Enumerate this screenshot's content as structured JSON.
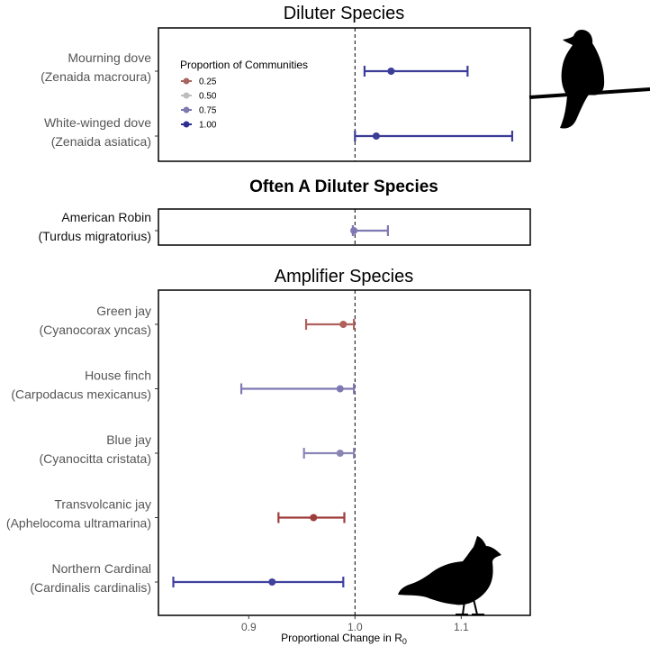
{
  "chart_data": {
    "type": "errorbar",
    "xlabel": "Proportional Change in R",
    "xlabel_subscript": "0",
    "xlim": [
      0.815,
      1.165
    ],
    "xticks": [
      0.9,
      1.0,
      1.1
    ],
    "xtick_labels": [
      "0.9",
      "1.0",
      "1.1"
    ],
    "reference_line": 1.0,
    "legend": {
      "title": "Proportion of Communities",
      "position": "top-left of first panel",
      "entries": [
        {
          "label": "0.25",
          "color": "#a8655f"
        },
        {
          "label": "0.50",
          "color": "#bdbdbd"
        },
        {
          "label": "0.75",
          "color": "#7f79b3"
        },
        {
          "label": "1.00",
          "color": "#2f2f93"
        }
      ]
    },
    "panels": [
      {
        "title": "Diluter Species",
        "title_bold": false,
        "species": [
          {
            "common": "Mourning dove",
            "latin": "(Zenaida macroura)",
            "estimate": 1.034,
            "lower": 1.009,
            "upper": 1.106,
            "proportion": "1.00",
            "color": "#3c3c99"
          },
          {
            "common": "White-winged dove",
            "latin": "(Zenaida asiatica)",
            "estimate": 1.02,
            "lower": 1.0,
            "upper": 1.148,
            "proportion": "1.00",
            "color": "#3c3c99"
          }
        ]
      },
      {
        "title": "Often A Diluter Species",
        "title_bold": true,
        "species": [
          {
            "common": "American Robin",
            "latin": "(Turdus migratorius)",
            "estimate": 0.999,
            "lower": 0.998,
            "upper": 1.031,
            "proportion": "0.75",
            "color": "#7f79b3"
          }
        ]
      },
      {
        "title": "Amplifier Species",
        "title_bold": false,
        "species": [
          {
            "common": "Green jay",
            "latin": "(Cyanocorax yncas)",
            "estimate": 0.989,
            "lower": 0.954,
            "upper": 0.999,
            "proportion": "0.25",
            "color": "#b0615c"
          },
          {
            "common": "House finch",
            "latin": "(Carpodacus mexicanus)",
            "estimate": 0.986,
            "lower": 0.893,
            "upper": 0.999,
            "proportion": "0.75",
            "color": "#7f79b3"
          },
          {
            "common": "Blue jay",
            "latin": "(Cyanocitta cristata)",
            "estimate": 0.986,
            "lower": 0.952,
            "upper": 0.999,
            "proportion": "0.75",
            "color": "#8985b5"
          },
          {
            "common": "Transvolcanic jay",
            "latin": "(Aphelocoma ultramarina)",
            "estimate": 0.961,
            "lower": 0.928,
            "upper": 0.99,
            "proportion": "0.25",
            "color": "#9e3b3b"
          },
          {
            "common": "Northern Cardinal",
            "latin": "(Cardinalis cardinalis)",
            "estimate": 0.922,
            "lower": 0.829,
            "upper": 0.989,
            "proportion": "1.00",
            "color": "#4141a0"
          }
        ]
      }
    ]
  },
  "icons": [
    "dove-silhouette-icon",
    "cardinal-silhouette-icon"
  ]
}
